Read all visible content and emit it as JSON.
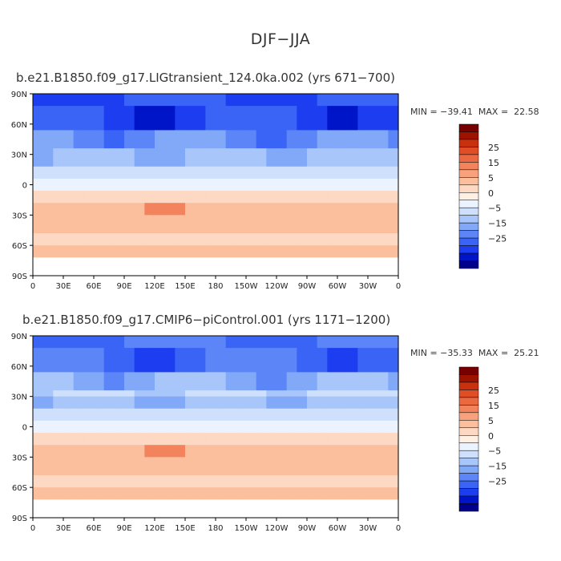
{
  "title": "DJF−JJA",
  "colors": {
    "levels": [
      "#00008c",
      "#0015c8",
      "#1c3ef0",
      "#3a64f6",
      "#5c86f7",
      "#82a8f8",
      "#a9c6fb",
      "#cfe0fd",
      "#eaf3ff",
      "#fff0e4",
      "#fdd8c2",
      "#fbbf9e",
      "#f7a27c",
      "#f2835c",
      "#eb6840",
      "#e04e26",
      "#c8300e",
      "#9e1300",
      "#780000"
    ],
    "land_outline": "#000000",
    "missing": "#ffffff"
  },
  "colorbar": {
    "labels": [
      "25",
      "15",
      "5",
      "0",
      "−5",
      "−15",
      "−25"
    ]
  },
  "axes": {
    "x_ticks": [
      "0",
      "30E",
      "60E",
      "90E",
      "120E",
      "150E",
      "180",
      "150W",
      "120W",
      "90W",
      "60W",
      "30W",
      "0"
    ],
    "y_ticks": [
      "90N",
      "60N",
      "30N",
      "0",
      "30S",
      "60S",
      "90S"
    ]
  },
  "chart_data": [
    {
      "type": "heatmap",
      "title": "b.e21.B1850.f09_g17.LIGtransient_124.0ka.002 (yrs 671−700)",
      "title_overlay": "bg.e21.B1850.f09 g17",
      "min_label": "MIN = −39.41",
      "max_label": "MAX =  22.58",
      "min": -39.41,
      "max": 22.58,
      "xlim": [
        0,
        360
      ],
      "ylim": [
        -90,
        90
      ],
      "grid": false
    },
    {
      "type": "heatmap",
      "title": "b.e21.B1850.f09_g17.CMIP6−piControl.001 (yrs 1171−1200)",
      "title_overlay": "b.e21.B1850.f09 g17",
      "min_label": "MIN = −35.33",
      "max_label": "MAX =  25.21",
      "min": -35.33,
      "max": 25.21,
      "xlim": [
        0,
        360
      ],
      "ylim": [
        -90,
        90
      ],
      "grid": false
    }
  ]
}
